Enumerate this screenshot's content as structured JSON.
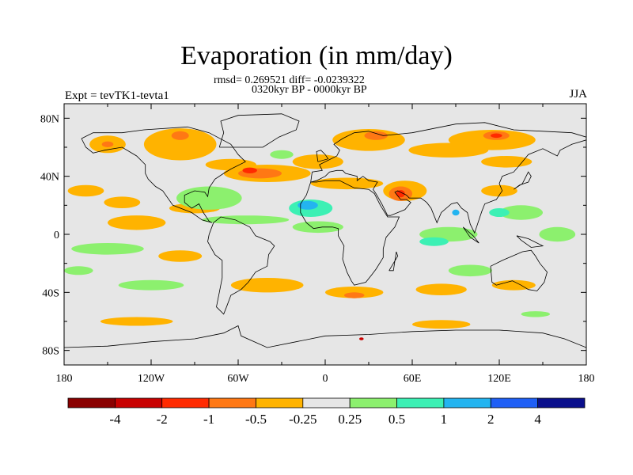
{
  "chart_data": {
    "type": "heatmap",
    "title": "Evaporation (in mm/day)",
    "subtitle_stats": "rmsd= 0.269521 diff= -0.0239322",
    "subtitle_period": "0320kyr BP - 0000kyr BP",
    "left_label": "Expt = tevTK1-tevta1",
    "right_label": "JJA",
    "xlim": [
      -180,
      180
    ],
    "ylim": [
      -90,
      90
    ],
    "x_ticks": [
      {
        "value": -180,
        "label": "180"
      },
      {
        "value": -120,
        "label": "120W"
      },
      {
        "value": -60,
        "label": "60W"
      },
      {
        "value": 0,
        "label": "0"
      },
      {
        "value": 60,
        "label": "60E"
      },
      {
        "value": 120,
        "label": "120E"
      },
      {
        "value": 180,
        "label": "180"
      }
    ],
    "y_ticks": [
      {
        "value": 80,
        "label": "80N"
      },
      {
        "value": 40,
        "label": "40N"
      },
      {
        "value": 0,
        "label": "0"
      },
      {
        "value": -40,
        "label": "40S"
      },
      {
        "value": -80,
        "label": "80S"
      }
    ],
    "background_color": "#e6e6e6",
    "colorbar": {
      "colors": [
        "#8a0000",
        "#c80000",
        "#ff2a00",
        "#ff7814",
        "#ffb300",
        "#e6e6e6",
        "#8cf06e",
        "#3cf0b4",
        "#23b4f0",
        "#1f5ff5",
        "#0a0f8c"
      ],
      "labels": [
        "-4",
        "-2",
        "-1",
        "-0.5",
        "-0.25",
        "0.25",
        "0.5",
        "1",
        "2",
        "4"
      ]
    },
    "regions": [
      {
        "c": 4,
        "lon": 115,
        "lat": 65,
        "w": 60,
        "h": 14
      },
      {
        "c": 4,
        "lon": 85,
        "lat": 58,
        "w": 55,
        "h": 10
      },
      {
        "c": 4,
        "lon": 30,
        "lat": 65,
        "w": 50,
        "h": 15
      },
      {
        "c": 4,
        "lon": -100,
        "lat": 62,
        "w": 50,
        "h": 22
      },
      {
        "c": 4,
        "lon": -150,
        "lat": 62,
        "w": 25,
        "h": 12
      },
      {
        "c": 4,
        "lon": -165,
        "lat": 30,
        "w": 25,
        "h": 8
      },
      {
        "c": 4,
        "lon": -140,
        "lat": 22,
        "w": 25,
        "h": 8
      },
      {
        "c": 4,
        "lon": -40,
        "lat": 42,
        "w": 60,
        "h": 12
      },
      {
        "c": 4,
        "lon": -65,
        "lat": 48,
        "w": 35,
        "h": 8
      },
      {
        "c": 4,
        "lon": -5,
        "lat": 50,
        "w": 35,
        "h": 10
      },
      {
        "c": 4,
        "lon": 55,
        "lat": 30,
        "w": 30,
        "h": 14
      },
      {
        "c": 4,
        "lon": 15,
        "lat": 35,
        "w": 50,
        "h": 8
      },
      {
        "c": 4,
        "lon": 125,
        "lat": 50,
        "w": 35,
        "h": 8
      },
      {
        "c": 4,
        "lon": 120,
        "lat": 30,
        "w": 25,
        "h": 8
      },
      {
        "c": 4,
        "lon": -130,
        "lat": 8,
        "w": 40,
        "h": 10
      },
      {
        "c": 4,
        "lon": -90,
        "lat": 18,
        "w": 35,
        "h": 7
      },
      {
        "c": 4,
        "lon": -40,
        "lat": -35,
        "w": 50,
        "h": 10
      },
      {
        "c": 4,
        "lon": 20,
        "lat": -40,
        "w": 40,
        "h": 8
      },
      {
        "c": 4,
        "lon": 80,
        "lat": -38,
        "w": 35,
        "h": 8
      },
      {
        "c": 4,
        "lon": -130,
        "lat": -60,
        "w": 50,
        "h": 6
      },
      {
        "c": 4,
        "lon": 80,
        "lat": -62,
        "w": 40,
        "h": 6
      },
      {
        "c": 4,
        "lon": -100,
        "lat": -15,
        "w": 30,
        "h": 8
      },
      {
        "c": 4,
        "lon": 130,
        "lat": -35,
        "w": 30,
        "h": 7
      },
      {
        "c": 3,
        "lon": -45,
        "lat": 42,
        "w": 30,
        "h": 7
      },
      {
        "c": 3,
        "lon": 52,
        "lat": 28,
        "w": 16,
        "h": 10
      },
      {
        "c": 3,
        "lon": 118,
        "lat": 68,
        "w": 18,
        "h": 6
      },
      {
        "c": 3,
        "lon": 35,
        "lat": 68,
        "w": 16,
        "h": 6
      },
      {
        "c": 3,
        "lon": -100,
        "lat": 68,
        "w": 12,
        "h": 6
      },
      {
        "c": 3,
        "lon": 20,
        "lat": -42,
        "w": 14,
        "h": 4
      },
      {
        "c": 3,
        "lon": -150,
        "lat": 62,
        "w": 8,
        "h": 4
      },
      {
        "c": 2,
        "lon": 52,
        "lat": 28,
        "w": 6,
        "h": 5
      },
      {
        "c": 2,
        "lon": -52,
        "lat": 44,
        "w": 10,
        "h": 4
      },
      {
        "c": 2,
        "lon": 118,
        "lat": 68,
        "w": 8,
        "h": 3
      },
      {
        "c": 1,
        "lon": 25,
        "lat": -72,
        "w": 3,
        "h": 2
      },
      {
        "c": 6,
        "lon": -80,
        "lat": 25,
        "w": 45,
        "h": 16
      },
      {
        "c": 6,
        "lon": -55,
        "lat": 10,
        "w": 60,
        "h": 6
      },
      {
        "c": 6,
        "lon": -150,
        "lat": -10,
        "w": 50,
        "h": 8
      },
      {
        "c": 6,
        "lon": -120,
        "lat": -35,
        "w": 45,
        "h": 7
      },
      {
        "c": 6,
        "lon": -170,
        "lat": -25,
        "w": 20,
        "h": 6
      },
      {
        "c": 6,
        "lon": -5,
        "lat": 5,
        "w": 35,
        "h": 8
      },
      {
        "c": 6,
        "lon": 85,
        "lat": 0,
        "w": 40,
        "h": 10
      },
      {
        "c": 6,
        "lon": 100,
        "lat": -25,
        "w": 30,
        "h": 8
      },
      {
        "c": 6,
        "lon": 160,
        "lat": 0,
        "w": 25,
        "h": 10
      },
      {
        "c": 6,
        "lon": 135,
        "lat": 15,
        "w": 30,
        "h": 10
      },
      {
        "c": 6,
        "lon": -30,
        "lat": 55,
        "w": 16,
        "h": 6
      },
      {
        "c": 6,
        "lon": 145,
        "lat": -55,
        "w": 20,
        "h": 4
      },
      {
        "c": 7,
        "lon": -10,
        "lat": 18,
        "w": 30,
        "h": 12
      },
      {
        "c": 7,
        "lon": 75,
        "lat": -5,
        "w": 20,
        "h": 6
      },
      {
        "c": 7,
        "lon": 120,
        "lat": 15,
        "w": 14,
        "h": 6
      },
      {
        "c": 8,
        "lon": -12,
        "lat": 20,
        "w": 14,
        "h": 6
      },
      {
        "c": 8,
        "lon": 90,
        "lat": 15,
        "w": 5,
        "h": 4
      }
    ]
  }
}
